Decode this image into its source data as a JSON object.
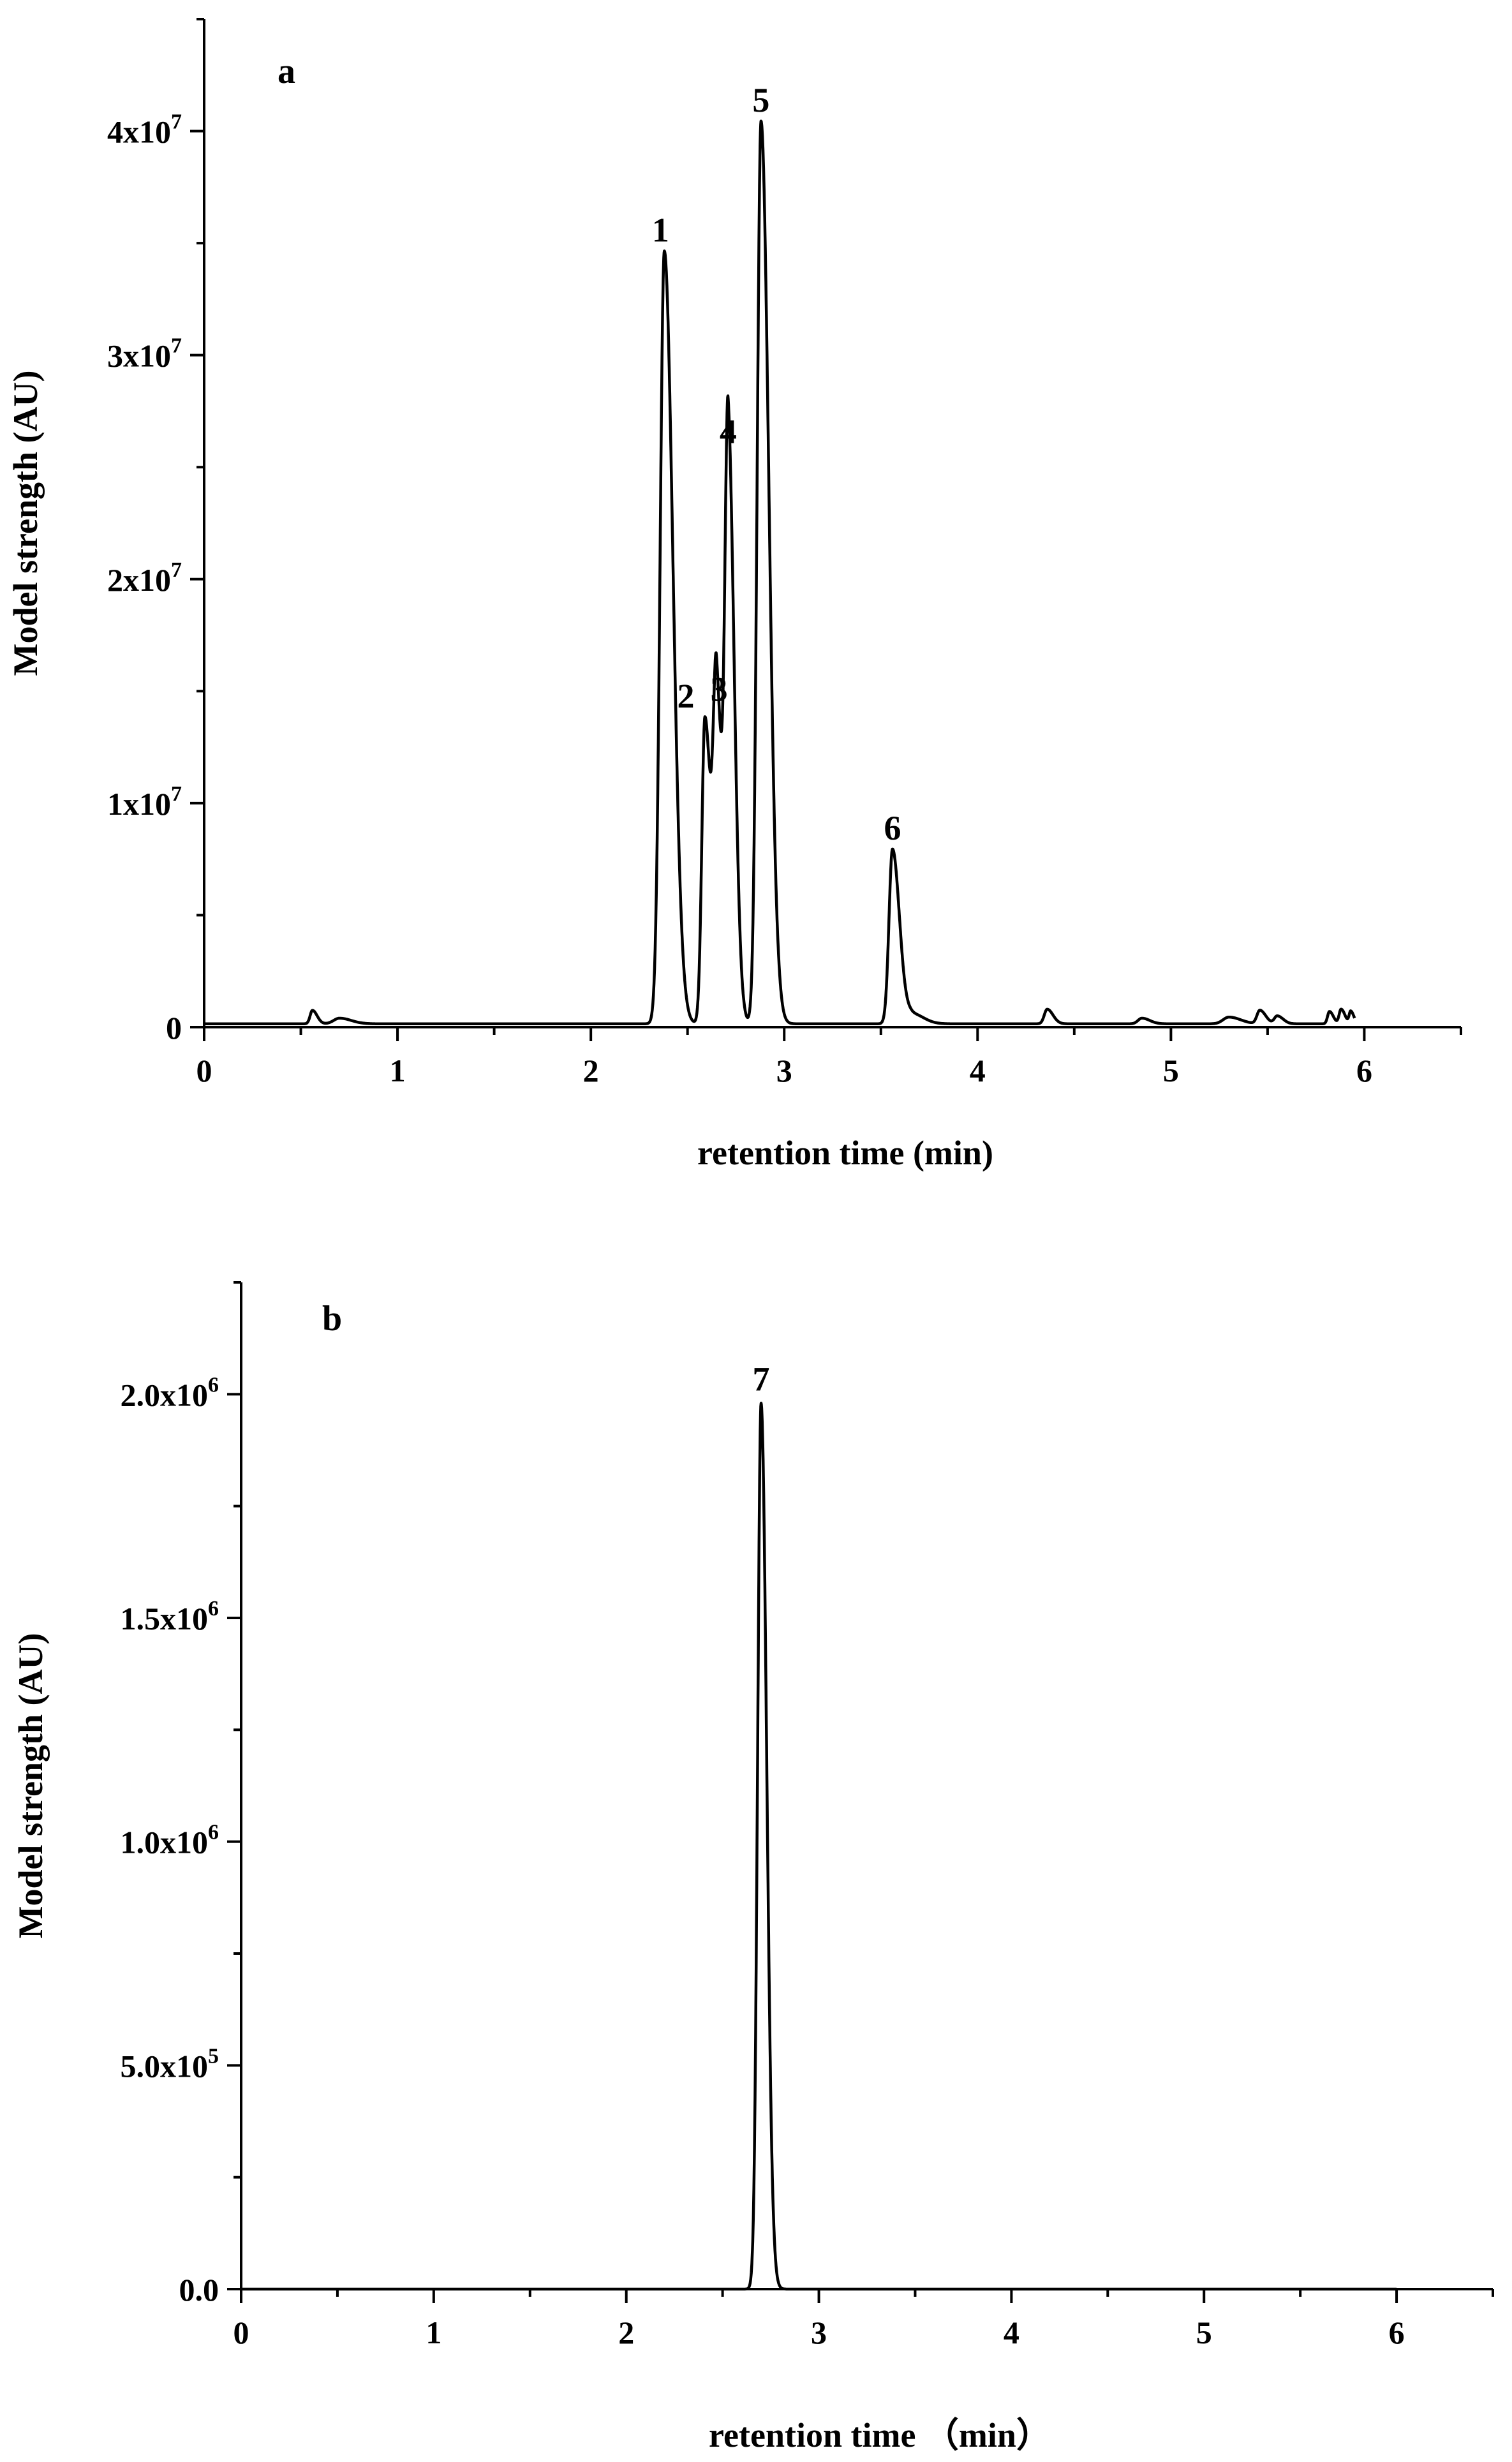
{
  "chart_data": [
    {
      "type": "line",
      "panel": "a",
      "xlabel": "retention time  (min)",
      "ylabel": "Model strength (AU)",
      "xlim": [
        0,
        6.5
      ],
      "ylim": [
        0,
        45000000
      ],
      "x_ticks": [
        0,
        1,
        2,
        3,
        4,
        5,
        6
      ],
      "x_tick_labels": [
        "0",
        "1",
        "2",
        "3",
        "4",
        "5",
        "6"
      ],
      "y_ticks": [
        0,
        10000000,
        20000000,
        30000000,
        40000000
      ],
      "y_tick_labels": [
        {
          "text": "0",
          "exp": ""
        },
        {
          "text": "1x10",
          "exp": "7"
        },
        {
          "text": "2x10",
          "exp": "7"
        },
        {
          "text": "3x10",
          "exp": "7"
        },
        {
          "text": "4x10",
          "exp": "7"
        }
      ],
      "grid": false,
      "baseline": 150000,
      "x_end": 5.95,
      "peaks": [
        {
          "label": "1",
          "x": 2.38,
          "y": 34500000,
          "sigma": 0.022
        },
        {
          "label": "2",
          "x": 2.59,
          "y": 13700000,
          "sigma": 0.016
        },
        {
          "label": "3",
          "x": 2.65,
          "y": 14000000,
          "sigma": 0.016
        },
        {
          "label": "4",
          "x": 2.71,
          "y": 25500000,
          "sigma": 0.016
        },
        {
          "label": "5",
          "x": 2.88,
          "y": 40300000,
          "sigma": 0.02
        },
        {
          "label": "6",
          "x": 3.56,
          "y": 7800000,
          "sigma": 0.018
        }
      ],
      "minor_features": [
        {
          "x": 0.56,
          "y": 600000,
          "sigma": 0.012
        },
        {
          "x": 0.7,
          "y": 250000,
          "sigma": 0.03
        },
        {
          "x": 3.66,
          "y": 450000,
          "sigma": 0.03
        },
        {
          "x": 4.36,
          "y": 650000,
          "sigma": 0.015
        },
        {
          "x": 4.85,
          "y": 250000,
          "sigma": 0.02
        },
        {
          "x": 5.3,
          "y": 300000,
          "sigma": 0.03
        },
        {
          "x": 5.46,
          "y": 600000,
          "sigma": 0.015
        },
        {
          "x": 5.55,
          "y": 350000,
          "sigma": 0.015
        },
        {
          "x": 5.82,
          "y": 550000,
          "sigma": 0.01
        },
        {
          "x": 5.88,
          "y": 650000,
          "sigma": 0.01
        },
        {
          "x": 5.93,
          "y": 550000,
          "sigma": 0.008
        }
      ]
    },
    {
      "type": "line",
      "panel": "b",
      "xlabel": "retention time （min）",
      "ylabel": "Model strength (AU)",
      "xlim": [
        0,
        6.5
      ],
      "ylim": [
        0,
        2250000
      ],
      "x_ticks": [
        0,
        1,
        2,
        3,
        4,
        5,
        6
      ],
      "x_tick_labels": [
        "0",
        "1",
        "2",
        "3",
        "4",
        "5",
        "6"
      ],
      "y_ticks": [
        0,
        500000,
        1000000,
        1500000,
        2000000
      ],
      "y_tick_labels": [
        {
          "text": "0.0",
          "exp": ""
        },
        {
          "text": "5.0x10",
          "exp": "5"
        },
        {
          "text": "1.0x10",
          "exp": "6"
        },
        {
          "text": "1.5x10",
          "exp": "6"
        },
        {
          "text": "2.0x10",
          "exp": "6"
        }
      ],
      "grid": false,
      "baseline": 0,
      "x_end": 6.0,
      "peaks": [
        {
          "label": "7",
          "x": 2.7,
          "y": 1980000,
          "sigma": 0.018
        }
      ],
      "minor_features": []
    }
  ]
}
